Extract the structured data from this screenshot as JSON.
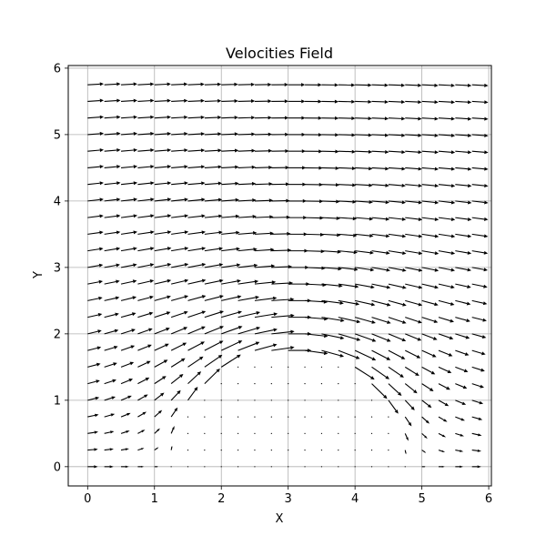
{
  "chart_data": {
    "type": "quiver",
    "title": "Velocities Field",
    "xlabel": "X",
    "ylabel": "Y",
    "xlim": [
      -0.29,
      6.04
    ],
    "ylim": [
      -0.29,
      6.04
    ],
    "xticks": [
      "0",
      "1",
      "2",
      "3",
      "4",
      "5",
      "6"
    ],
    "yticks": [
      "0",
      "1",
      "2",
      "3",
      "4",
      "5",
      "6"
    ],
    "grid": true,
    "grid_color": "#b0b0b0",
    "arrow_color": "#000000",
    "field": {
      "description_units": "data units",
      "grid_x": {
        "start": 0.0,
        "step": 0.25,
        "count": 24
      },
      "grid_y": {
        "start": 0.0,
        "step": 0.25,
        "count": 24
      },
      "free_stream_u": 1.0,
      "obstacle": {
        "shape": "semicircle",
        "center": [
          3.0,
          0.0
        ],
        "radius": 1.75
      }
    }
  }
}
